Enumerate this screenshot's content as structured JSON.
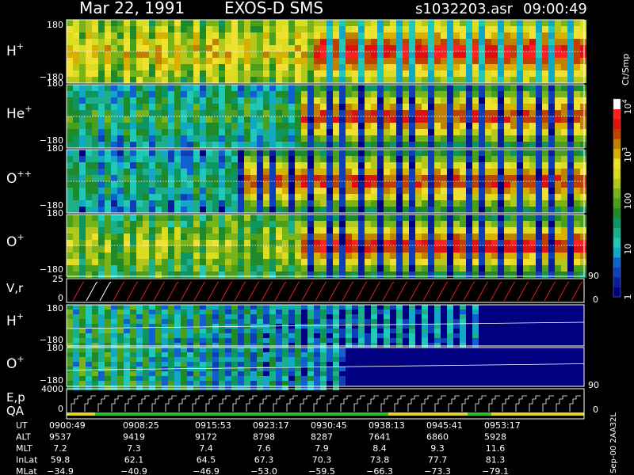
{
  "header": {
    "date": "Mar 22, 1991",
    "instrument": "EXOS-D SMS",
    "file": "s1032203.asr",
    "time": "09:00:49"
  },
  "colorbar": {
    "unit": "Ct/Smp",
    "ticks": [
      {
        "label": "1",
        "value": 1
      },
      {
        "label": "10",
        "value": 10
      },
      {
        "label": "100",
        "value": 100
      },
      {
        "label": "10",
        "sup": "3",
        "value": 1000
      },
      {
        "label": "10",
        "sup": "4",
        "value": 10000
      }
    ],
    "colors": [
      "#000080",
      "#0a1e9a",
      "#0f3fb8",
      "#1060d0",
      "#13a7c6",
      "#20c8b8",
      "#1bb08a",
      "#0f9660",
      "#1e8a2a",
      "#4aa01c",
      "#78b418",
      "#b4c81c",
      "#dcdc20",
      "#f0e030",
      "#d8b000",
      "#c08000",
      "#c04000",
      "#e01010",
      "#ff2020",
      "#ffffff"
    ]
  },
  "right_axis": {
    "label_top": "90",
    "label_bottom": "90"
  },
  "panels": {
    "h_plus": {
      "name": "H",
      "sup": "+",
      "ymax": "180",
      "ymin": "−180"
    },
    "he_plus": {
      "name": "He",
      "sup": "+",
      "ymax": "180",
      "ymin": "−180"
    },
    "o_pp": {
      "name": "O",
      "sup": "++",
      "ymax": "180",
      "ymin": "−180"
    },
    "o_plus": {
      "name": "O",
      "sup": "+",
      "ymax": "180",
      "ymin": "−180"
    },
    "vr": {
      "name": "V,r",
      "ymax": "25",
      "ymin": "0",
      "right": "0"
    },
    "h_plus2": {
      "name": "H",
      "sup": "+",
      "ymax": "180",
      "ymin": "−180"
    },
    "o_plus2": {
      "name": "O",
      "sup": "+",
      "ymax": "180",
      "ymin": "−180"
    },
    "ep": {
      "name": "E,p",
      "ymax": "4000",
      "ymin": "0",
      "right": "0"
    },
    "qa": {
      "name": "QA"
    }
  },
  "table": {
    "rows": [
      {
        "label": "UT",
        "values": [
          "0900:49",
          "0908:25",
          "0915:53",
          "0923:17",
          "0930:45",
          "0938:13",
          "0945:41",
          "0953:17"
        ]
      },
      {
        "label": "ALT",
        "values": [
          "9537",
          "9419",
          "9172",
          "8798",
          "8287",
          "7641",
          "6860",
          "5928"
        ]
      },
      {
        "label": "MLT",
        "values": [
          "7.2",
          "7.3",
          "7.4",
          "7.6",
          "7.9",
          "8.4",
          "9.3",
          "11.6"
        ]
      },
      {
        "label": "InLat",
        "values": [
          "59.8",
          "62.1",
          "64.5",
          "67.3",
          "70.3",
          "73.8",
          "77.7",
          "81.3"
        ]
      },
      {
        "label": "MLat",
        "values": [
          "−34.9",
          "−40.9",
          "−46.9",
          "−53.0",
          "−59.5",
          "−66.3",
          "−73.3",
          "−79.1"
        ]
      }
    ]
  },
  "footer": {
    "vertical_text": "Sep-00  2AA32L"
  },
  "chart_data": {
    "type": "heatmap",
    "title": "",
    "xlabel": "UT",
    "x_ticks": [
      "0900:49",
      "0908:25",
      "0915:53",
      "0923:17",
      "0930:45",
      "0938:13",
      "0945:41",
      "0953:17"
    ],
    "panels": [
      {
        "name": "H+",
        "ylim": [
          -180,
          180
        ]
      },
      {
        "name": "He+",
        "ylim": [
          -180,
          180
        ]
      },
      {
        "name": "O++",
        "ylim": [
          -180,
          180
        ]
      },
      {
        "name": "O+",
        "ylim": [
          -180,
          180
        ]
      },
      {
        "name": "V,r",
        "ylim": [
          0,
          25
        ]
      },
      {
        "name": "H+",
        "ylim": [
          -180,
          180
        ]
      },
      {
        "name": "O+",
        "ylim": [
          -180,
          180
        ]
      },
      {
        "name": "E,p",
        "ylim": [
          0,
          4000
        ]
      }
    ],
    "colorbar": {
      "unit": "Ct/Smp",
      "scale": "log",
      "range": [
        1,
        10000
      ]
    }
  }
}
